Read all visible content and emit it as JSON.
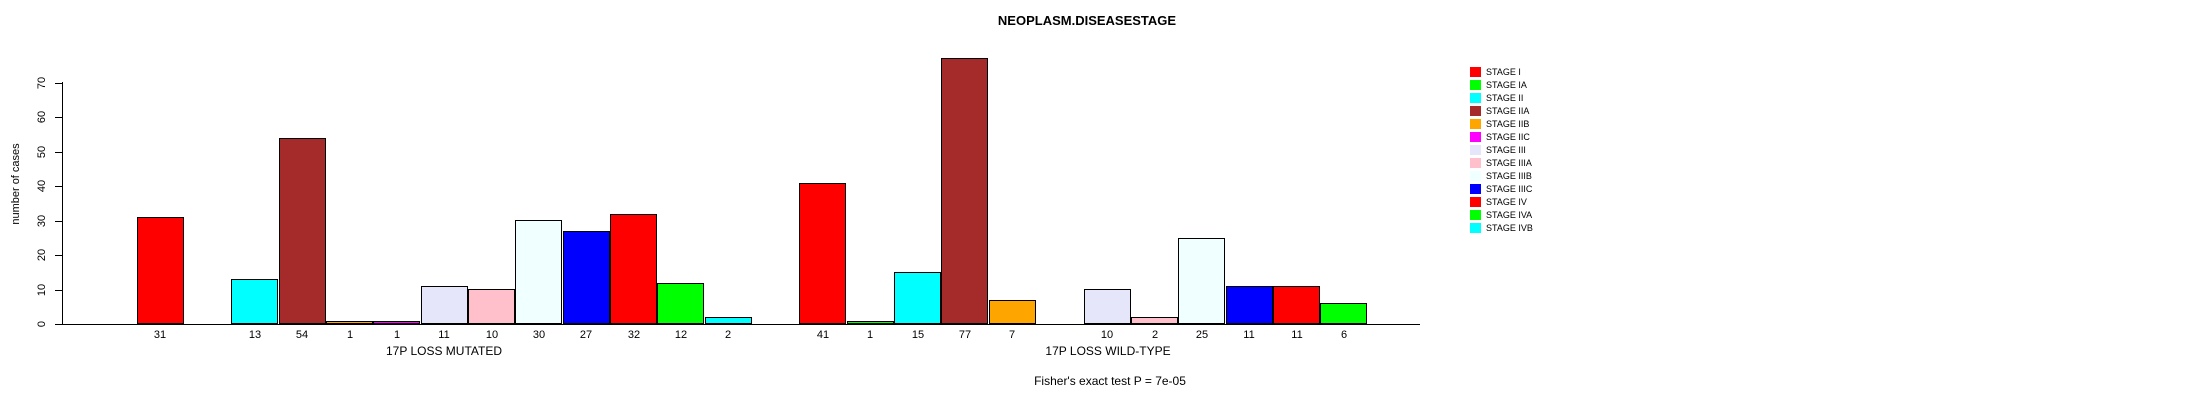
{
  "title": "NEOPLASM.DISEASESTAGE",
  "chart_data": {
    "type": "bar",
    "title": "NEOPLASM.DISEASESTAGE",
    "ylabel": "number of cases",
    "xlabel": "",
    "ylim": [
      0,
      70
    ],
    "yticks": [
      0,
      10,
      20,
      30,
      40,
      50,
      60,
      70
    ],
    "grid": false,
    "legend_position": "right",
    "categories": [
      "STAGE I",
      "STAGE IA",
      "STAGE II",
      "STAGE IIA",
      "STAGE IIB",
      "STAGE IIC",
      "STAGE III",
      "STAGE IIIA",
      "STAGE IIIB",
      "STAGE IIIC",
      "STAGE IV",
      "STAGE IVA",
      "STAGE IVB"
    ],
    "colors": [
      "#FF0000",
      "#00FF00",
      "#00FFFF",
      "#A52A2A",
      "#FFA500",
      "#FF00FF",
      "#E6E6FA",
      "#FFC0CB",
      "#F0FFFF",
      "#0000FF",
      "#FF0000",
      "#00FF00",
      "#00FFFF"
    ],
    "groups": [
      {
        "label": "17P LOSS MUTATED",
        "values": [
          31,
          0,
          13,
          54,
          1,
          1,
          11,
          10,
          30,
          27,
          32,
          12,
          2
        ]
      },
      {
        "label": "17P LOSS WILD-TYPE",
        "values": [
          41,
          1,
          15,
          77,
          7,
          0,
          10,
          2,
          25,
          11,
          11,
          6,
          0
        ]
      }
    ],
    "annotation": "Fisher's exact test P = 7e-05",
    "bar_outline_color": "#000000",
    "axis_color": "#000000"
  }
}
